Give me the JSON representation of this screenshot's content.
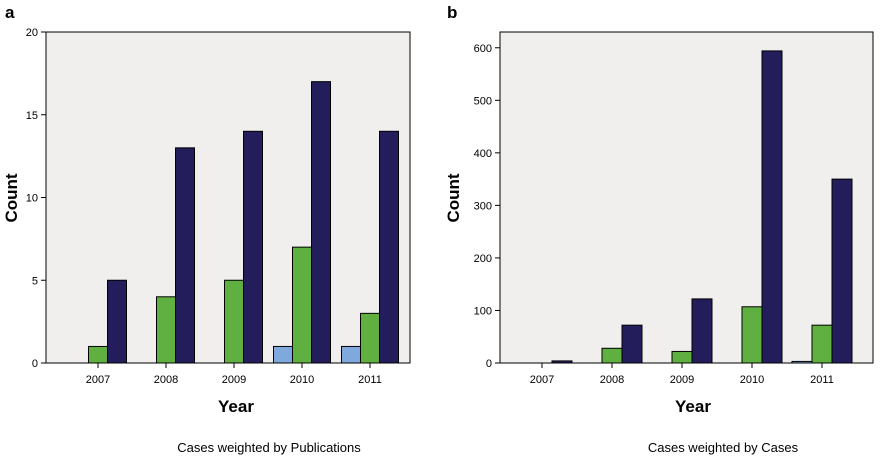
{
  "chart_data": [
    {
      "panel_label": "a",
      "type": "bar",
      "categories": [
        "2007",
        "2008",
        "2009",
        "2010",
        "2011"
      ],
      "series": [
        {
          "color": "#7fa8dc",
          "values": [
            0,
            0,
            0,
            1,
            1
          ]
        },
        {
          "color": "#5fb040",
          "values": [
            1,
            4,
            5,
            7,
            3
          ]
        },
        {
          "color": "#231d5c",
          "values": [
            5,
            13,
            14,
            17,
            14
          ]
        }
      ],
      "xlabel": "Year",
      "ylabel": "Count",
      "ylim": [
        0,
        20
      ],
      "yticks": [
        0,
        5,
        10,
        15,
        20
      ],
      "grid": false,
      "plot_background": "#f1efee",
      "note": "Cases weighted by Publications"
    },
    {
      "panel_label": "b",
      "type": "bar",
      "categories": [
        "2007",
        "2008",
        "2009",
        "2010",
        "2011"
      ],
      "series": [
        {
          "color": "#7fa8dc",
          "values": [
            0,
            0,
            0,
            0,
            3
          ]
        },
        {
          "color": "#5fb040",
          "values": [
            0,
            28,
            22,
            107,
            72
          ]
        },
        {
          "color": "#231d5c",
          "values": [
            4,
            72,
            122,
            594,
            350
          ]
        }
      ],
      "xlabel": "Year",
      "ylabel": "Count",
      "ylim": [
        0,
        630
      ],
      "yticks": [
        0,
        100,
        200,
        300,
        400,
        500,
        600
      ],
      "grid": false,
      "plot_background": "#f1efee",
      "note": "Cases weighted by Cases"
    }
  ]
}
